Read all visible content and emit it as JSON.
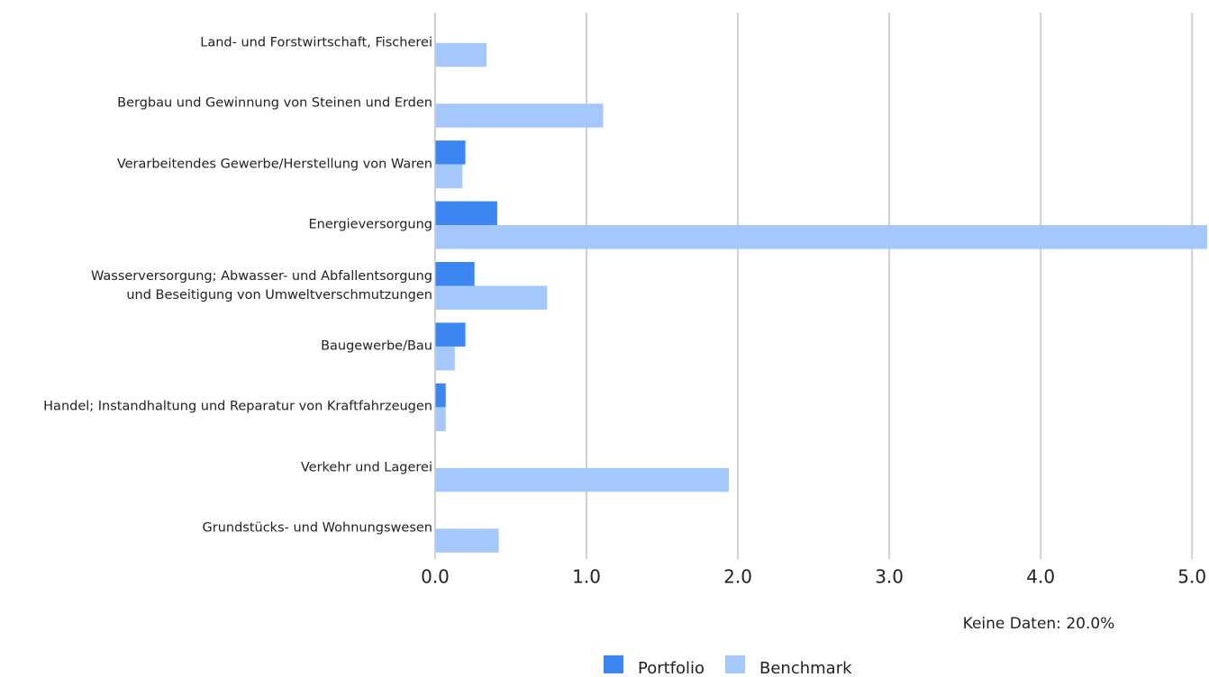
{
  "chart_data": {
    "type": "hbar",
    "categories": [
      "Land- und Forstwirtschaft, Fischerei",
      "Bergbau und Gewinnung von Steinen und Erden",
      "Verarbeitendes Gewerbe/Herstellung von Waren",
      "Energieversorgung",
      "Wasserversorgung; Abwasser- und Abfallentsorgung\nund Beseitigung von Umweltverschmutzungen",
      "Baugewerbe/Bau",
      "Handel; Instandhaltung und Reparatur von Kraftfahrzeugen",
      "Verkehr und Lagerei",
      "Grundstücks- und Wohnungswesen"
    ],
    "series": [
      {
        "name": "Portfolio",
        "color": "#3b86f0",
        "values": [
          0,
          0,
          0.2,
          0.41,
          0.26,
          0.2,
          0.07,
          0,
          0
        ]
      },
      {
        "name": "Benchmark",
        "color": "#a4c8fb",
        "values": [
          0.34,
          1.11,
          0.18,
          5.1,
          0.74,
          0.13,
          0.07,
          1.94,
          0.42
        ]
      }
    ],
    "xlim": [
      0,
      5.1
    ],
    "xticks": [
      {
        "value": 0,
        "label": "0.0"
      },
      {
        "value": 1,
        "label": "1.0"
      },
      {
        "value": 2,
        "label": "2.0"
      },
      {
        "value": 3,
        "label": "3.0"
      },
      {
        "value": 4,
        "label": "4.0"
      },
      {
        "value": 5,
        "label": "5.0"
      }
    ],
    "grid": true,
    "annotation": "Keine Daten: 20.0%"
  }
}
